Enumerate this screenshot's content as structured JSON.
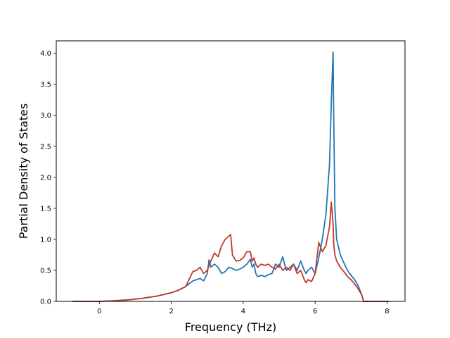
{
  "chart_data": {
    "type": "line",
    "title": "",
    "xlabel": "Frequency (THz)",
    "ylabel": "Partial Density of States",
    "xlim": [
      -1.2,
      8.5
    ],
    "ylim": [
      0.0,
      4.2
    ],
    "xticks": [
      0,
      2,
      4,
      6,
      8
    ],
    "yticks": [
      0.0,
      0.5,
      1.0,
      1.5,
      2.0,
      2.5,
      3.0,
      3.5,
      4.0
    ],
    "xtick_labels": [
      "0",
      "2",
      "4",
      "6",
      "8"
    ],
    "ytick_labels": [
      "0.0",
      "0.5",
      "1.0",
      "1.5",
      "2.0",
      "2.5",
      "3.0",
      "3.5",
      "4.0"
    ],
    "grid": false,
    "series": [
      {
        "color": "#1f77b4",
        "x": [
          -0.75,
          -0.4,
          0.0,
          0.4,
          0.8,
          1.2,
          1.6,
          2.0,
          2.2,
          2.4,
          2.6,
          2.7,
          2.8,
          2.9,
          3.0,
          3.05,
          3.1,
          3.2,
          3.3,
          3.4,
          3.5,
          3.6,
          3.7,
          3.8,
          3.9,
          4.0,
          4.1,
          4.2,
          4.25,
          4.3,
          4.35,
          4.4,
          4.5,
          4.6,
          4.7,
          4.8,
          4.9,
          5.0,
          5.1,
          5.15,
          5.2,
          5.3,
          5.4,
          5.5,
          5.6,
          5.7,
          5.75,
          5.8,
          5.9,
          6.0,
          6.1,
          6.2,
          6.3,
          6.4,
          6.45,
          6.5,
          6.52,
          6.55,
          6.6,
          6.7,
          6.8,
          6.9,
          7.0,
          7.1,
          7.2,
          7.3,
          7.35,
          7.5,
          8.05
        ],
        "y": [
          0.0,
          0.0,
          0.0,
          0.01,
          0.025,
          0.05,
          0.085,
          0.14,
          0.18,
          0.24,
          0.33,
          0.35,
          0.37,
          0.33,
          0.45,
          0.67,
          0.55,
          0.6,
          0.55,
          0.45,
          0.48,
          0.55,
          0.53,
          0.5,
          0.52,
          0.55,
          0.6,
          0.68,
          0.55,
          0.6,
          0.45,
          0.4,
          0.42,
          0.4,
          0.43,
          0.45,
          0.6,
          0.55,
          0.72,
          0.6,
          0.5,
          0.55,
          0.6,
          0.5,
          0.65,
          0.5,
          0.45,
          0.5,
          0.55,
          0.45,
          0.7,
          1.0,
          1.4,
          2.2,
          3.2,
          4.02,
          2.8,
          1.5,
          1.0,
          0.75,
          0.62,
          0.5,
          0.42,
          0.35,
          0.25,
          0.1,
          0.0,
          0.0,
          0.0
        ]
      },
      {
        "color": "#c0392b",
        "x": [
          -0.75,
          -0.4,
          0.0,
          0.4,
          0.8,
          1.2,
          1.6,
          2.0,
          2.2,
          2.4,
          2.6,
          2.7,
          2.8,
          2.9,
          3.0,
          3.05,
          3.1,
          3.2,
          3.3,
          3.4,
          3.5,
          3.6,
          3.65,
          3.7,
          3.8,
          3.9,
          4.0,
          4.1,
          4.2,
          4.25,
          4.3,
          4.35,
          4.4,
          4.5,
          4.6,
          4.7,
          4.8,
          4.9,
          5.0,
          5.1,
          5.2,
          5.3,
          5.4,
          5.5,
          5.6,
          5.7,
          5.75,
          5.8,
          5.9,
          6.0,
          6.1,
          6.2,
          6.3,
          6.4,
          6.45,
          6.5,
          6.52,
          6.55,
          6.6,
          6.7,
          6.8,
          6.9,
          7.0,
          7.1,
          7.2,
          7.3,
          7.35,
          7.5,
          8.05
        ],
        "y": [
          0.0,
          0.0,
          0.0,
          0.01,
          0.025,
          0.05,
          0.085,
          0.14,
          0.18,
          0.24,
          0.48,
          0.5,
          0.55,
          0.45,
          0.5,
          0.58,
          0.65,
          0.78,
          0.72,
          0.9,
          1.0,
          1.05,
          1.08,
          0.75,
          0.65,
          0.66,
          0.7,
          0.8,
          0.8,
          0.65,
          0.7,
          0.6,
          0.55,
          0.6,
          0.58,
          0.6,
          0.55,
          0.52,
          0.6,
          0.5,
          0.55,
          0.5,
          0.6,
          0.45,
          0.5,
          0.35,
          0.3,
          0.35,
          0.32,
          0.45,
          0.95,
          0.8,
          0.9,
          1.2,
          1.6,
          1.25,
          0.9,
          0.75,
          0.65,
          0.55,
          0.48,
          0.4,
          0.35,
          0.28,
          0.2,
          0.1,
          0.0,
          0.0,
          0.0
        ]
      }
    ]
  }
}
